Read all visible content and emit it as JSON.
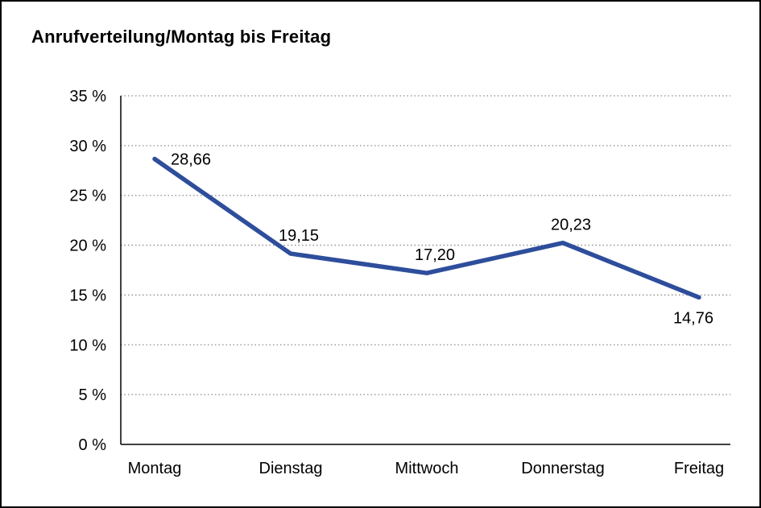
{
  "chart_data": {
    "type": "line",
    "title": "Anrufverteilung/Montag bis Freitag",
    "categories": [
      "Montag",
      "Dienstag",
      "Mittwoch",
      "Donnerstag",
      "Freitag"
    ],
    "values": [
      28.66,
      19.15,
      17.2,
      20.23,
      14.76
    ],
    "value_labels": [
      "28,66",
      "19,15",
      "17,20",
      "20,23",
      "14,76"
    ],
    "label_positions": [
      "right",
      "above",
      "above",
      "above",
      "below"
    ],
    "xlabel": "",
    "ylabel": "",
    "ylim": [
      0,
      35
    ],
    "ytick_step": 5,
    "ytick_suffix": " %",
    "grid": "horizontal-dotted",
    "legend": "none",
    "line_color": "#2e4e9c",
    "grid_color": "#8a8a8a",
    "axis_color": "#000000",
    "text_color": "#000000",
    "background_color": "#ffffff"
  }
}
